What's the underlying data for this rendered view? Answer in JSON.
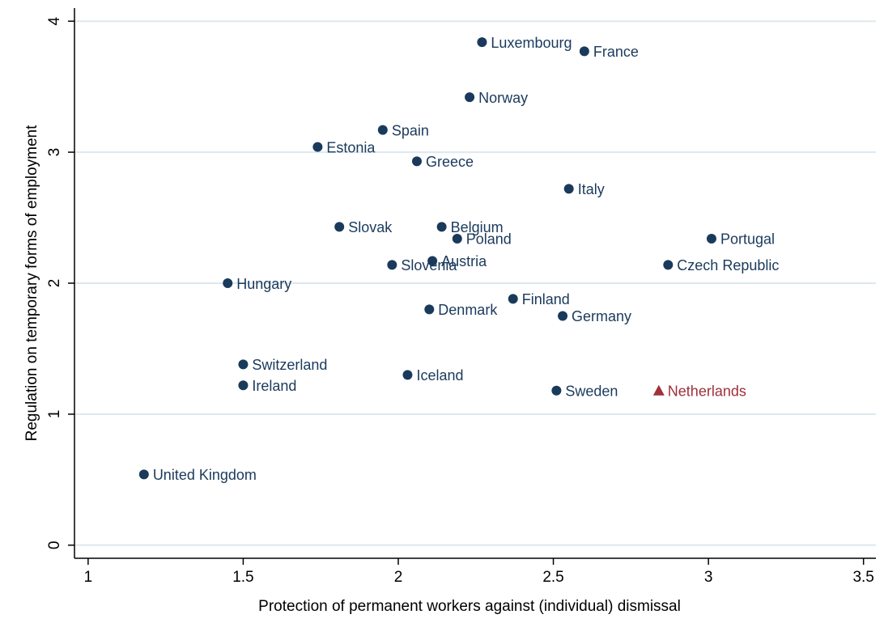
{
  "chart_data": {
    "type": "scatter",
    "xlabel": "Protection of permanent workers against (individual) dismissal",
    "ylabel": "Regulation on temporary forms of employment",
    "xlim": [
      0.956,
      3.54
    ],
    "ylim": [
      -0.1,
      4.1
    ],
    "xticks": [
      1,
      1.5,
      2,
      2.5,
      3,
      3.5
    ],
    "yticks": [
      0,
      1,
      2,
      3,
      4
    ],
    "grid": true,
    "series": [
      {
        "color": "#1a3a5c",
        "marker": "circle",
        "labels": [
          "Luxembourg",
          "France",
          "Norway",
          "Spain",
          "Estonia",
          "Greece",
          "Italy",
          "Slovak",
          "Belgium",
          "Poland",
          "Portugal",
          "Slovenia",
          "Austria",
          "Czech Republic",
          "Hungary",
          "Finland",
          "Denmark",
          "Germany",
          "Switzerland",
          "Ireland",
          "Iceland",
          "Sweden",
          "United Kingdom"
        ],
        "x": [
          2.27,
          2.6,
          2.23,
          1.95,
          1.74,
          2.06,
          2.55,
          1.81,
          2.14,
          2.19,
          3.01,
          1.98,
          2.11,
          2.87,
          1.45,
          2.37,
          2.1,
          2.53,
          1.5,
          1.5,
          2.03,
          2.51,
          1.18
        ],
        "values": [
          3.84,
          3.77,
          3.42,
          3.17,
          3.04,
          2.93,
          2.72,
          2.43,
          2.43,
          2.34,
          2.34,
          2.14,
          2.17,
          2.14,
          2.0,
          1.88,
          1.8,
          1.75,
          1.38,
          1.22,
          1.3,
          1.18,
          0.54
        ]
      },
      {
        "color": "#a0303a",
        "marker": "triangle",
        "labels": [
          "Netherlands"
        ],
        "x": [
          2.84
        ],
        "values": [
          1.18
        ]
      }
    ]
  }
}
